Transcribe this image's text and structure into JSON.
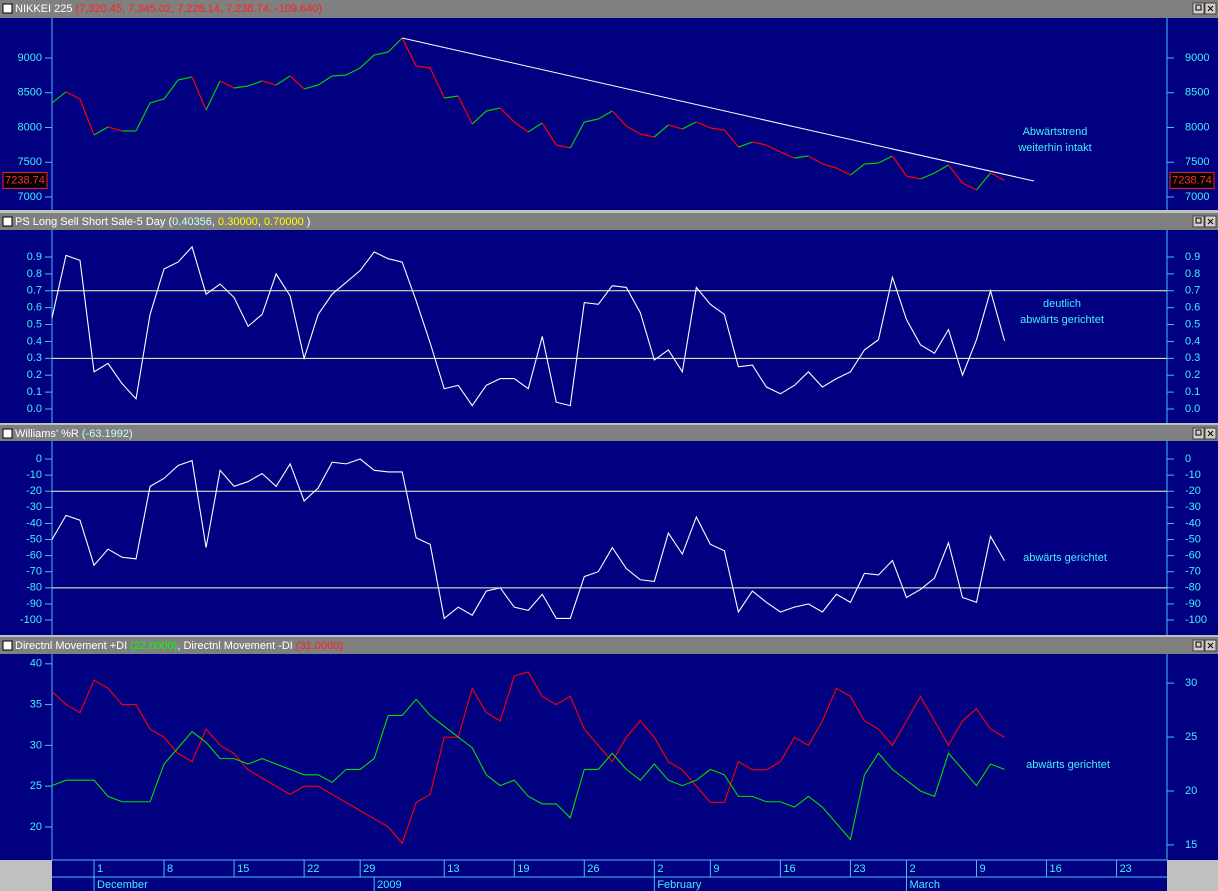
{
  "chart_data": [
    {
      "type": "line",
      "title_parts": [
        {
          "text": "NIKKEI 225 ",
          "color": "#ffffff"
        },
        {
          "text": "(7,320.45, 7,345.02, 7,228.14, 7,238.74, -109.640)",
          "color": "#ff2020"
        }
      ],
      "xlim": [
        0,
        79.6
      ],
      "ylim": [
        6813,
        9575
      ],
      "yticks": [
        7000,
        7500,
        8000,
        8500,
        9000
      ],
      "x": [
        0,
        1,
        2,
        3,
        4,
        5,
        6,
        7,
        8,
        9,
        10,
        11,
        12,
        13,
        14,
        15,
        16,
        17,
        18,
        19,
        20,
        21,
        22,
        23,
        24,
        25,
        26,
        27,
        28,
        29,
        30,
        31,
        32,
        33,
        34,
        35,
        36,
        37,
        38,
        39,
        40,
        41,
        42,
        43,
        44,
        45,
        46,
        47,
        48,
        49,
        50,
        51,
        52,
        53,
        54,
        55,
        56,
        57,
        58,
        59,
        60,
        61,
        62,
        63,
        64,
        65,
        66,
        67,
        68
      ],
      "series": [
        {
          "name": "NIKKEI 225",
          "up_color": "#00d000",
          "down_color": "#ff0000",
          "values": [
            8353,
            8511,
            8410,
            7892,
            8007,
            7950,
            7950,
            8353,
            8410,
            8683,
            8727,
            8252,
            8669,
            8568,
            8597,
            8669,
            8611,
            8741,
            8554,
            8611,
            8741,
            8755,
            8856,
            9043,
            9086,
            9288,
            8885,
            8856,
            8424,
            8453,
            8050,
            8237,
            8281,
            8079,
            7935,
            8065,
            7748,
            7705,
            8079,
            8122,
            8237,
            8021,
            7906,
            7863,
            8036,
            7978,
            8079,
            7993,
            7964,
            7719,
            7791,
            7748,
            7647,
            7561,
            7590,
            7475,
            7417,
            7316,
            7475,
            7489,
            7590,
            7302,
            7259,
            7345,
            7460,
            7201,
            7101,
            7345,
            7238.74
          ]
        }
      ],
      "last_value": 7238.74,
      "trendline": {
        "x": [
          25,
          70.1
        ],
        "values": [
          9288,
          7230
        ],
        "color": "#ffffff"
      },
      "annotation": [
        "Abwärtstrend",
        "weiterhin intakt"
      ]
    },
    {
      "type": "line",
      "title_parts": [
        {
          "text": "PS Long Sell Short Sale-5 Day ",
          "color": "#ffffff"
        },
        {
          "text": "(",
          "color": "#ffffff"
        },
        {
          "text": "0.40356",
          "color": "#c0ffff"
        },
        {
          "text": ", ",
          "color": "#ffffff"
        },
        {
          "text": "0.30000",
          "color": "#ffff00"
        },
        {
          "text": ", ",
          "color": "#ffffff"
        },
        {
          "text": "0.70000",
          "color": "#ffff00"
        },
        {
          "text": " )",
          "color": "#ffffff"
        }
      ],
      "xlim": [
        0,
        79.6
      ],
      "ylim": [
        -0.083,
        1.06
      ],
      "yticks": [
        {
          "value": 0,
          "label": "0.0"
        },
        0.1,
        0.2,
        0.3,
        0.4,
        0.5,
        0.6,
        0.7,
        0.8,
        0.9
      ],
      "x": [
        0,
        1,
        2,
        3,
        4,
        5,
        6,
        7,
        8,
        9,
        10,
        11,
        12,
        13,
        14,
        15,
        16,
        17,
        18,
        19,
        20,
        21,
        22,
        23,
        24,
        25,
        26,
        27,
        28,
        29,
        30,
        31,
        32,
        33,
        34,
        35,
        36,
        37,
        38,
        39,
        40,
        41,
        42,
        43,
        44,
        45,
        46,
        47,
        48,
        49,
        50,
        51,
        52,
        53,
        54,
        55,
        56,
        57,
        58,
        59,
        60,
        61,
        62,
        63,
        64,
        65,
        66,
        67,
        68
      ],
      "series": [
        {
          "name": "PS Long Sell Short Sale-5 Day",
          "color": "#ffffff",
          "values": [
            0.54,
            0.91,
            0.88,
            0.22,
            0.27,
            0.15,
            0.06,
            0.56,
            0.83,
            0.87,
            0.96,
            0.68,
            0.74,
            0.66,
            0.49,
            0.56,
            0.8,
            0.67,
            0.3,
            0.56,
            0.68,
            0.75,
            0.82,
            0.93,
            0.89,
            0.87,
            0.64,
            0.39,
            0.12,
            0.14,
            0.02,
            0.14,
            0.18,
            0.18,
            0.12,
            0.43,
            0.04,
            0.02,
            0.63,
            0.62,
            0.73,
            0.72,
            0.57,
            0.29,
            0.35,
            0.22,
            0.72,
            0.62,
            0.56,
            0.25,
            0.26,
            0.13,
            0.09,
            0.14,
            0.22,
            0.13,
            0.18,
            0.22,
            0.35,
            0.41,
            0.78,
            0.53,
            0.38,
            0.33,
            0.47,
            0.2,
            0.41,
            0.7,
            0.40356
          ]
        }
      ],
      "hlines": {
        "values": [
          0.3,
          0.7
        ],
        "color": "#ffffc0"
      },
      "annotation": [
        "deutlich",
        "abwärts gerichtet"
      ]
    },
    {
      "type": "line",
      "title_parts": [
        {
          "text": "Williams' %R ",
          "color": "#ffffff"
        },
        {
          "text": "(-63.1992)",
          "color": "#c0ffff"
        }
      ],
      "xlim": [
        0,
        79.6
      ],
      "ylim": [
        -109.3,
        11.2
      ],
      "yticks": [
        -100,
        -90,
        -80,
        -70,
        -60,
        -50,
        -40,
        -30,
        -20,
        -10,
        0
      ],
      "x": [
        0,
        1,
        2,
        3,
        4,
        5,
        6,
        7,
        8,
        9,
        10,
        11,
        12,
        13,
        14,
        15,
        16,
        17,
        18,
        19,
        20,
        21,
        22,
        23,
        24,
        25,
        26,
        27,
        28,
        29,
        30,
        31,
        32,
        33,
        34,
        35,
        36,
        37,
        38,
        39,
        40,
        41,
        42,
        43,
        44,
        45,
        46,
        47,
        48,
        49,
        50,
        51,
        52,
        53,
        54,
        55,
        56,
        57,
        58,
        59,
        60,
        61,
        62,
        63,
        64,
        65,
        66,
        67,
        68
      ],
      "series": [
        {
          "name": "Williams' %R",
          "color": "#ffffff",
          "values": [
            -50,
            -35,
            -38,
            -66,
            -56,
            -61,
            -62,
            -17,
            -12,
            -4,
            -1,
            -55,
            -7,
            -17,
            -14,
            -9,
            -17,
            -3,
            -26,
            -18,
            -2,
            -3,
            0,
            -7,
            -8,
            -8,
            -49,
            -53,
            -99,
            -92,
            -97,
            -82,
            -80,
            -92,
            -94,
            -84,
            -99,
            -99,
            -73,
            -70,
            -55,
            -68,
            -75,
            -76,
            -46,
            -59,
            -36,
            -53,
            -57,
            -95,
            -82,
            -89,
            -95,
            -92,
            -90,
            -95,
            -84,
            -89,
            -71,
            -72,
            -63,
            -86,
            -81,
            -74,
            -52,
            -86,
            -89,
            -48,
            -63.1992
          ]
        }
      ],
      "hlines": {
        "values": [
          -20,
          -80
        ],
        "color": "#ffffc0"
      },
      "annotation": [
        "abwärts gerichtet"
      ]
    },
    {
      "type": "line",
      "title_parts": [
        {
          "text": "Directnl Movement +DI ",
          "color": "#ffffff"
        },
        {
          "text": "(22.0000)",
          "color": "#00ff00"
        },
        {
          "text": ", Directnl Movement -DI ",
          "color": "#ffffff"
        },
        {
          "text": "(31.0000)",
          "color": "#ff2020"
        }
      ],
      "xlim": [
        0,
        79.6
      ],
      "ylim": [
        15.95,
        41.2
      ],
      "yticks": [
        20,
        25,
        30,
        35,
        40
      ],
      "y2lim": [
        13.6,
        32.7
      ],
      "y2ticks": [
        15,
        20,
        25,
        30
      ],
      "x": [
        0,
        1,
        2,
        3,
        4,
        5,
        6,
        7,
        8,
        9,
        10,
        11,
        12,
        13,
        14,
        15,
        16,
        17,
        18,
        19,
        20,
        21,
        22,
        23,
        24,
        25,
        26,
        27,
        28,
        29,
        30,
        31,
        32,
        33,
        34,
        35,
        36,
        37,
        38,
        39,
        40,
        41,
        42,
        43,
        44,
        45,
        46,
        47,
        48,
        49,
        50,
        51,
        52,
        53,
        54,
        55,
        56,
        57,
        58,
        59,
        60,
        61,
        62,
        63,
        64,
        65,
        66,
        67,
        68
      ],
      "series": [
        {
          "name": "Directnl Movement -DI",
          "color": "#ff0000",
          "values": [
            36.6,
            35,
            34,
            38,
            37,
            35,
            35,
            32,
            31,
            29,
            28,
            32,
            30,
            29,
            27,
            26,
            25,
            24,
            25,
            25,
            24,
            23,
            22,
            21,
            20,
            18,
            23,
            24,
            31,
            31,
            37,
            34,
            33,
            38.5,
            39,
            36,
            35,
            36,
            32,
            30,
            28,
            31,
            33,
            31,
            28,
            27,
            25,
            23,
            23,
            28,
            27,
            27,
            28,
            31,
            30,
            33,
            37,
            36,
            33,
            32,
            30,
            33,
            36,
            33,
            30,
            33,
            34.5,
            32,
            31
          ]
        },
        {
          "name": "Directnl Movement +DI",
          "color": "#00e000",
          "axis": "y2",
          "values": [
            20.5,
            21,
            21,
            21,
            19.5,
            19,
            19,
            19,
            22.5,
            24,
            25.5,
            24.5,
            23,
            23,
            22.5,
            23,
            22.5,
            22,
            21.5,
            21.5,
            20.8,
            22,
            22,
            23,
            27,
            27,
            28.5,
            27,
            26,
            25,
            24,
            21.5,
            20.5,
            21,
            19.5,
            18.8,
            18.8,
            17.5,
            22,
            22,
            23.5,
            22,
            21,
            22.5,
            21,
            20.5,
            21,
            22,
            21.5,
            19.5,
            19.5,
            19,
            19,
            18.5,
            19.5,
            18.5,
            17,
            15.5,
            21.5,
            23.5,
            22,
            21,
            20,
            19.5,
            23.5,
            22,
            20.5,
            22.5,
            22
          ]
        }
      ],
      "annotation": [
        "abwärts gerichtet"
      ],
      "xticks": [
        {
          "value": 3,
          "label": "1"
        },
        {
          "value": 8,
          "label": "8"
        },
        {
          "value": 13,
          "label": "15"
        },
        {
          "value": 18,
          "label": "22"
        },
        {
          "value": 22,
          "label": "29"
        },
        {
          "value": 28,
          "label": "13"
        },
        {
          "value": 33,
          "label": "19"
        },
        {
          "value": 38,
          "label": "26"
        },
        {
          "value": 43,
          "label": "2"
        },
        {
          "value": 47,
          "label": "9"
        },
        {
          "value": 52,
          "label": "16"
        },
        {
          "value": 57,
          "label": "23"
        },
        {
          "value": 61,
          "label": "2"
        },
        {
          "value": 66,
          "label": "9"
        },
        {
          "value": 71,
          "label": "16"
        },
        {
          "value": 76,
          "label": "23"
        }
      ],
      "months": [
        {
          "value": 3,
          "label": "December"
        },
        {
          "value": 23,
          "label": "2009"
        },
        {
          "value": 43,
          "label": "February"
        },
        {
          "value": 61,
          "label": "March"
        }
      ]
    }
  ]
}
